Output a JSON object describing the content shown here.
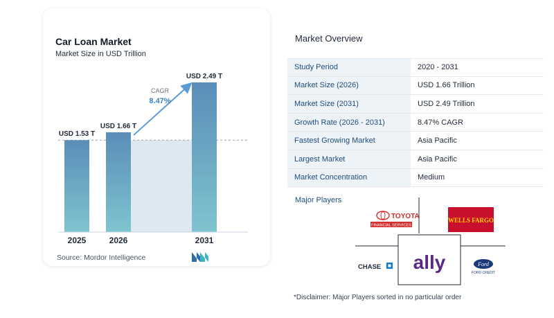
{
  "chart_data": {
    "type": "bar",
    "title": "Car Loan Market",
    "subtitle": "Market Size in USD Trillion",
    "categories": [
      "2025",
      "2026",
      "2031"
    ],
    "values": [
      1.53,
      1.66,
      2.49
    ],
    "value_labels": [
      "USD 1.53 T",
      "USD 1.66 T",
      "USD 2.49 T"
    ],
    "cagr_label": "CAGR",
    "cagr_value": "8.47%",
    "ylim": [
      0,
      2.8
    ]
  },
  "source": "Source:  Mordor Intelligence",
  "overview": {
    "title": "Market Overview",
    "rows": [
      {
        "label": "Study Period",
        "value": "2020 - 2031"
      },
      {
        "label": "Market Size (2026)",
        "value": "USD 1.66 Trillion"
      },
      {
        "label": "Market Size (2031)",
        "value": "USD 2.49 Trillion"
      },
      {
        "label": "Growth Rate (2026 - 2031)",
        "value": "8.47% CAGR"
      },
      {
        "label": "Fastest Growing Market",
        "value": "Asia Pacific"
      },
      {
        "label": "Largest Market",
        "value": "Asia Pacific"
      },
      {
        "label": "Market Concentration",
        "value": "Medium"
      }
    ]
  },
  "players": {
    "title": "Major Players",
    "logos": {
      "toyota": "TOYOTA",
      "toyota_sub": "FINANCIAL SERVICES",
      "wells": "WELLS FARGO",
      "chase": "CHASE",
      "ally": "ally",
      "ford": "Ford",
      "ford_sub": "FORD CREDIT"
    }
  },
  "disclaimer": "*Disclaimer: Major Players sorted in no particular order",
  "colors": {
    "bar_top": "#5b8db8",
    "bar_bottom": "#7fc4cf",
    "shade": "#dde8f1",
    "arrow": "#5b9bd5",
    "label_blue": "#1e4d7b"
  }
}
